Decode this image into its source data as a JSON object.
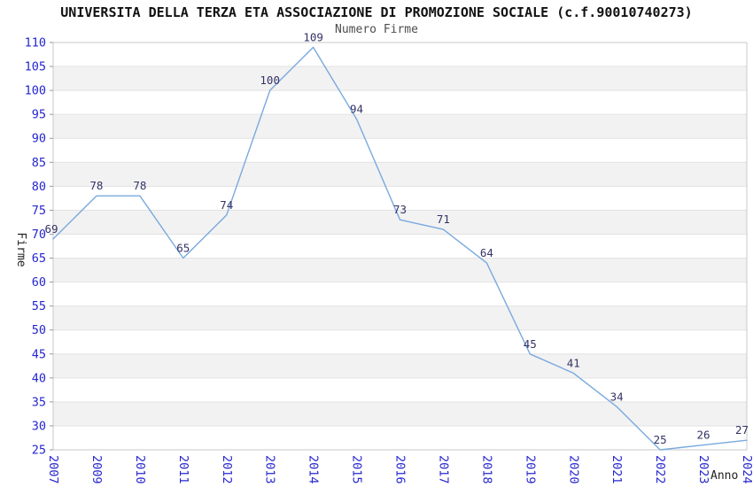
{
  "chart_data": {
    "type": "line",
    "title": "UNIVERSITA DELLA TERZA ETA ASSOCIAZIONE DI PROMOZIONE SOCIALE (c.f.90010740273)",
    "subtitle": "Numero Firme",
    "xlabel": "Anno",
    "ylabel": "Firme",
    "categories": [
      "2007",
      "2009",
      "2010",
      "2011",
      "2012",
      "2013",
      "2014",
      "2015",
      "2016",
      "2017",
      "2018",
      "2019",
      "2020",
      "2021",
      "2022",
      "2023",
      "2024"
    ],
    "values": [
      69,
      78,
      78,
      65,
      74,
      100,
      109,
      94,
      73,
      71,
      64,
      45,
      41,
      34,
      25,
      26,
      27
    ],
    "ylim": [
      25,
      110
    ],
    "ytick_step": 5,
    "grid": "horizontal-bands-alternating",
    "legend_position": "none",
    "colors": {
      "line": "#79a9de",
      "data_label": "#333366",
      "tick_label": "#2626cf",
      "band_gray": "#f2f2f2",
      "band_white": "#ffffff",
      "gridline": "#e2e2e2",
      "plot_border": "#c9c9c9",
      "title": "#111111",
      "subtitle": "#4d4d4d",
      "axis_title": "#222222"
    }
  }
}
